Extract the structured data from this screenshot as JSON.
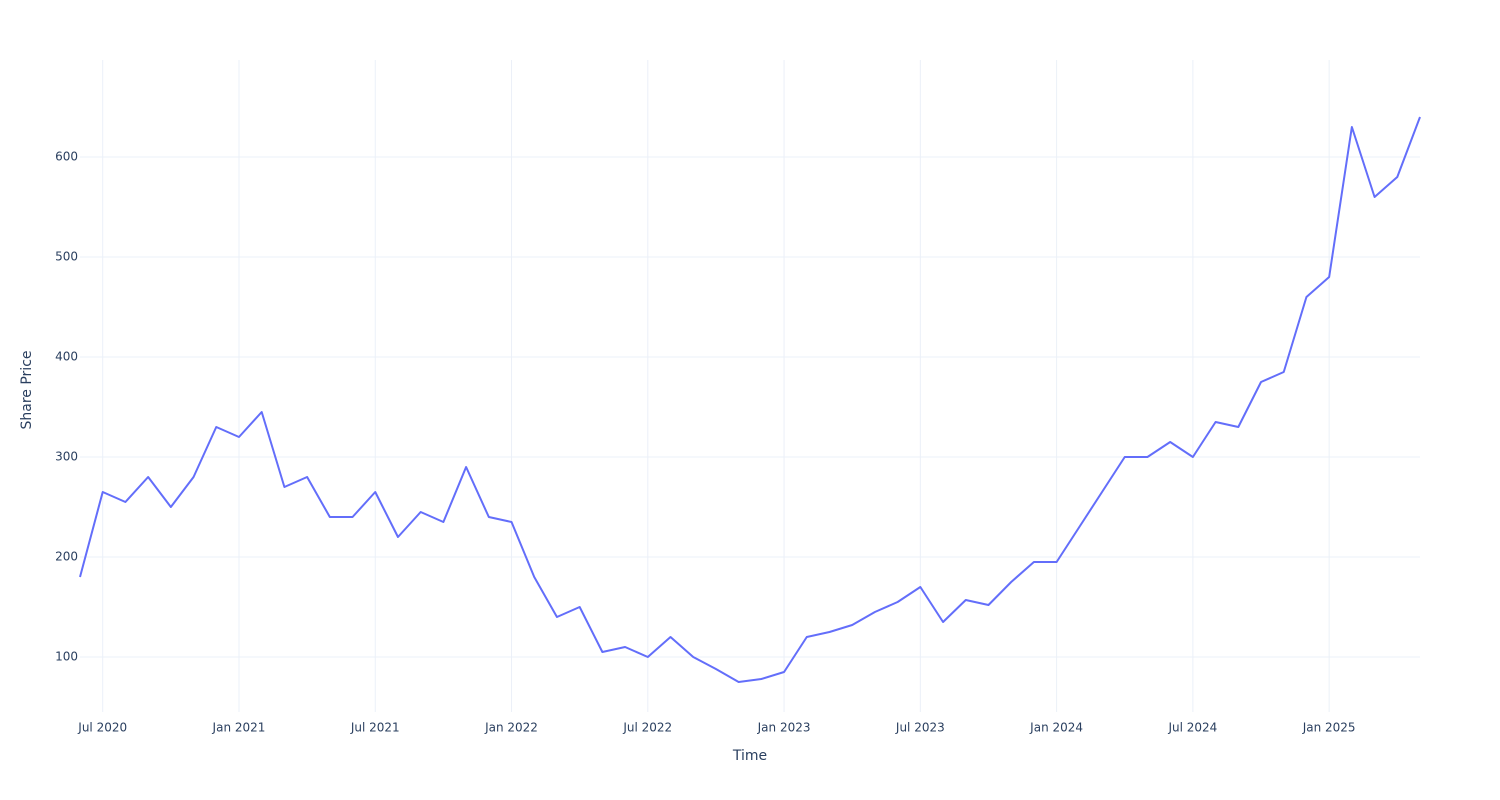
{
  "chart_data": {
    "type": "line",
    "x_label": "Time",
    "y_label": "Share Price",
    "x": [
      "2020-06",
      "2020-07",
      "2020-08",
      "2020-09",
      "2020-10",
      "2020-11",
      "2020-12",
      "2021-01",
      "2021-02",
      "2021-03",
      "2021-04",
      "2021-05",
      "2021-06",
      "2021-07",
      "2021-08",
      "2021-09",
      "2021-10",
      "2021-11",
      "2021-12",
      "2022-01",
      "2022-02",
      "2022-03",
      "2022-04",
      "2022-05",
      "2022-06",
      "2022-07",
      "2022-08",
      "2022-09",
      "2022-10",
      "2022-11",
      "2022-12",
      "2023-01",
      "2023-02",
      "2023-03",
      "2023-04",
      "2023-05",
      "2023-06",
      "2023-07",
      "2023-08",
      "2023-09",
      "2023-10",
      "2023-11",
      "2023-12",
      "2024-01",
      "2024-02",
      "2024-03",
      "2024-04",
      "2024-05",
      "2024-06",
      "2024-07",
      "2024-08",
      "2024-09",
      "2024-10",
      "2024-11",
      "2024-12",
      "2025-01",
      "2025-02",
      "2025-03",
      "2025-04",
      "2025-05"
    ],
    "series": [
      {
        "name": "Share Price",
        "color": "#636efa",
        "values": [
          180,
          265,
          255,
          280,
          250,
          280,
          330,
          320,
          345,
          270,
          280,
          240,
          240,
          265,
          220,
          245,
          235,
          290,
          240,
          235,
          180,
          140,
          150,
          105,
          110,
          100,
          120,
          100,
          88,
          75,
          78,
          85,
          120,
          125,
          132,
          145,
          155,
          170,
          135,
          157,
          152,
          175,
          195,
          195,
          230,
          265,
          300,
          300,
          315,
          300,
          335,
          330,
          375,
          385,
          460,
          480,
          630,
          560,
          580,
          640
        ]
      }
    ],
    "xlim": [
      "2020-06",
      "2025-05"
    ],
    "xticks": [
      {
        "value": "2020-07",
        "label": "Jul 2020"
      },
      {
        "value": "2021-01",
        "label": "Jan 2021"
      },
      {
        "value": "2021-07",
        "label": "Jul 2021"
      },
      {
        "value": "2022-01",
        "label": "Jan 2022"
      },
      {
        "value": "2022-07",
        "label": "Jul 2022"
      },
      {
        "value": "2023-01",
        "label": "Jan 2023"
      },
      {
        "value": "2023-07",
        "label": "Jul 2023"
      },
      {
        "value": "2024-01",
        "label": "Jan 2024"
      },
      {
        "value": "2024-07",
        "label": "Jul 2024"
      },
      {
        "value": "2025-01",
        "label": "Jan 2025"
      }
    ],
    "ylim": [
      45,
      697
    ],
    "yticks": [
      100,
      200,
      300,
      400,
      500,
      600
    ],
    "grid": true
  }
}
